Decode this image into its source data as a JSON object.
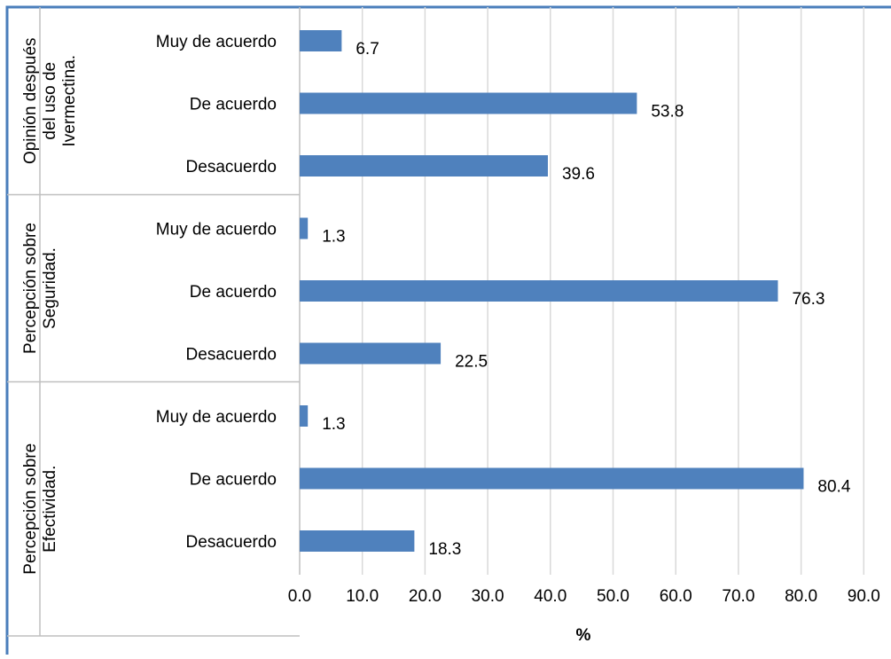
{
  "chart_data": {
    "type": "bar",
    "orientation": "horizontal",
    "title": "",
    "xlabel": "%",
    "ylabel": "",
    "xlim": [
      0,
      90
    ],
    "x_ticks": [
      "0.0",
      "10.0",
      "20.0",
      "30.0",
      "40.0",
      "50.0",
      "60.0",
      "70.0",
      "80.0",
      "90.0"
    ],
    "grid": "vertical",
    "legend": "none",
    "colors": {
      "bar": "#4f81bd",
      "grid": "#d9d9d9",
      "border": "#4a7ebb"
    },
    "groups": [
      {
        "label": "Opinión después del uso de Ivermectina.",
        "label_lines": [
          "Opinión después",
          "del uso de",
          "Ivermectina."
        ],
        "categories": [
          "Muy de acuerdo",
          "De acuerdo",
          "Desacuerdo"
        ],
        "values": [
          6.7,
          53.8,
          39.6
        ],
        "value_labels": [
          "6.7",
          "53.8",
          "39.6"
        ]
      },
      {
        "label": "Percepción sobre Seguridad.",
        "label_lines": [
          "Percepción sobre",
          "Seguridad."
        ],
        "categories": [
          "Muy de acuerdo",
          "De acuerdo",
          "Desacuerdo"
        ],
        "values": [
          1.3,
          76.3,
          22.5
        ],
        "value_labels": [
          "1.3",
          "76.3",
          "22.5"
        ]
      },
      {
        "label": "Percepción sobre Efectividad.",
        "label_lines": [
          "Percepción sobre",
          "Efectividad."
        ],
        "categories": [
          "Muy de acuerdo",
          "De acuerdo",
          "Desacuerdo"
        ],
        "values": [
          1.3,
          80.4,
          18.3
        ],
        "value_labels": [
          "1.3",
          "80.4",
          "18.3"
        ]
      }
    ]
  }
}
